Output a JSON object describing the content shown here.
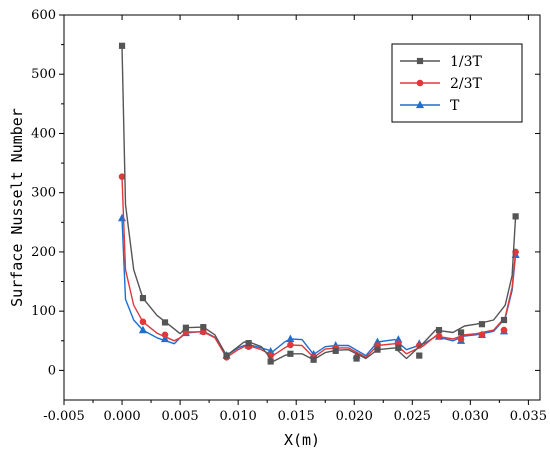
{
  "chart_data": {
    "type": "line",
    "xlabel": "X(m)",
    "ylabel": "Surface Nusselt Number",
    "xlim": [
      -0.005,
      0.036
    ],
    "ylim": [
      -50,
      600
    ],
    "xticks": [
      -0.005,
      0.0,
      0.005,
      0.01,
      0.015,
      0.02,
      0.025,
      0.03,
      0.035
    ],
    "xtick_labels": [
      "-0.005",
      "0.000",
      "0.005",
      "0.010",
      "0.015",
      "0.020",
      "0.025",
      "0.030",
      "0.035"
    ],
    "yticks": [
      0,
      100,
      200,
      300,
      400,
      500,
      600
    ],
    "ytick_labels": [
      "0",
      "100",
      "200",
      "300",
      "400",
      "500",
      "600"
    ],
    "grid": false,
    "legend_position": "top-right",
    "series": [
      {
        "name": "1/3T",
        "color": "#555555",
        "marker": "square",
        "x": [
          0.0,
          0.0003,
          0.001,
          0.0018,
          0.003,
          0.0045,
          0.005,
          0.0055,
          0.007,
          0.008,
          0.009,
          0.01,
          0.0105,
          0.0112,
          0.012,
          0.013,
          0.014,
          0.0145,
          0.0155,
          0.0165,
          0.0175,
          0.0185,
          0.0195,
          0.021,
          0.022,
          0.0235,
          0.0245,
          0.026,
          0.027,
          0.0285,
          0.0295,
          0.0305,
          0.032,
          0.033,
          0.0336,
          0.0339
        ],
        "y": [
          548,
          280,
          170,
          122,
          93,
          70,
          62,
          72,
          73,
          60,
          25,
          40,
          48,
          46,
          40,
          15,
          25,
          28,
          28,
          18,
          30,
          34,
          35,
          20,
          35,
          38,
          20,
          47,
          68,
          64,
          75,
          78,
          85,
          110,
          160,
          260
        ],
        "markers_x": [
          0.0,
          0.0018,
          0.0037,
          0.0055,
          0.007,
          0.009,
          0.0109,
          0.0128,
          0.0145,
          0.0165,
          0.0184,
          0.0202,
          0.022,
          0.0238,
          0.0256,
          0.0273,
          0.0292,
          0.031,
          0.0329,
          0.0339
        ],
        "markers_y": [
          548,
          122,
          81,
          72,
          73,
          25,
          46,
          15,
          28,
          18,
          33,
          20,
          35,
          38,
          25,
          68,
          64,
          78,
          85,
          260
        ]
      },
      {
        "name": "2/3T",
        "color": "#e0383b",
        "marker": "circle",
        "x": [
          0.0,
          0.0003,
          0.001,
          0.0018,
          0.003,
          0.0045,
          0.005,
          0.0055,
          0.007,
          0.008,
          0.009,
          0.01,
          0.0105,
          0.0112,
          0.012,
          0.013,
          0.014,
          0.0145,
          0.0155,
          0.0165,
          0.0175,
          0.0185,
          0.0195,
          0.021,
          0.022,
          0.0235,
          0.0245,
          0.026,
          0.027,
          0.0285,
          0.0295,
          0.0305,
          0.032,
          0.033,
          0.0336,
          0.0339
        ],
        "y": [
          327,
          170,
          110,
          82,
          63,
          50,
          55,
          65,
          65,
          55,
          22,
          35,
          40,
          40,
          35,
          25,
          38,
          43,
          42,
          22,
          36,
          38,
          38,
          22,
          42,
          45,
          28,
          42,
          58,
          53,
          60,
          62,
          68,
          90,
          140,
          200
        ],
        "markers_x": [
          0.0,
          0.0018,
          0.0037,
          0.0055,
          0.007,
          0.009,
          0.0109,
          0.0128,
          0.0145,
          0.0165,
          0.0184,
          0.0202,
          0.022,
          0.0238,
          0.0256,
          0.0273,
          0.0292,
          0.031,
          0.0329,
          0.0339
        ],
        "markers_y": [
          327,
          82,
          60,
          65,
          65,
          22,
          40,
          25,
          43,
          22,
          38,
          22,
          42,
          45,
          42,
          58,
          53,
          60,
          68,
          200
        ]
      },
      {
        "name": "T",
        "color": "#1f6fd0",
        "marker": "triangle",
        "x": [
          0.0,
          0.0003,
          0.001,
          0.0018,
          0.003,
          0.0045,
          0.005,
          0.0055,
          0.007,
          0.008,
          0.009,
          0.01,
          0.0105,
          0.0112,
          0.012,
          0.013,
          0.014,
          0.0145,
          0.0155,
          0.0165,
          0.0175,
          0.0185,
          0.0195,
          0.021,
          0.022,
          0.0235,
          0.0245,
          0.026,
          0.027,
          0.0285,
          0.0295,
          0.0305,
          0.032,
          0.033,
          0.0336,
          0.0339
        ],
        "y": [
          257,
          120,
          85,
          68,
          55,
          45,
          55,
          63,
          66,
          56,
          25,
          38,
          42,
          42,
          38,
          32,
          48,
          53,
          52,
          27,
          40,
          42,
          42,
          25,
          48,
          52,
          35,
          45,
          57,
          50,
          58,
          60,
          66,
          88,
          135,
          195
        ],
        "markers_x": [
          0.0,
          0.0018,
          0.0037,
          0.0055,
          0.007,
          0.009,
          0.0109,
          0.0128,
          0.0145,
          0.0165,
          0.0184,
          0.0202,
          0.022,
          0.0238,
          0.0256,
          0.0273,
          0.0292,
          0.031,
          0.0329,
          0.0339
        ],
        "markers_y": [
          257,
          68,
          53,
          63,
          66,
          25,
          42,
          32,
          53,
          27,
          42,
          25,
          48,
          52,
          45,
          57,
          50,
          60,
          66,
          195
        ]
      }
    ]
  }
}
